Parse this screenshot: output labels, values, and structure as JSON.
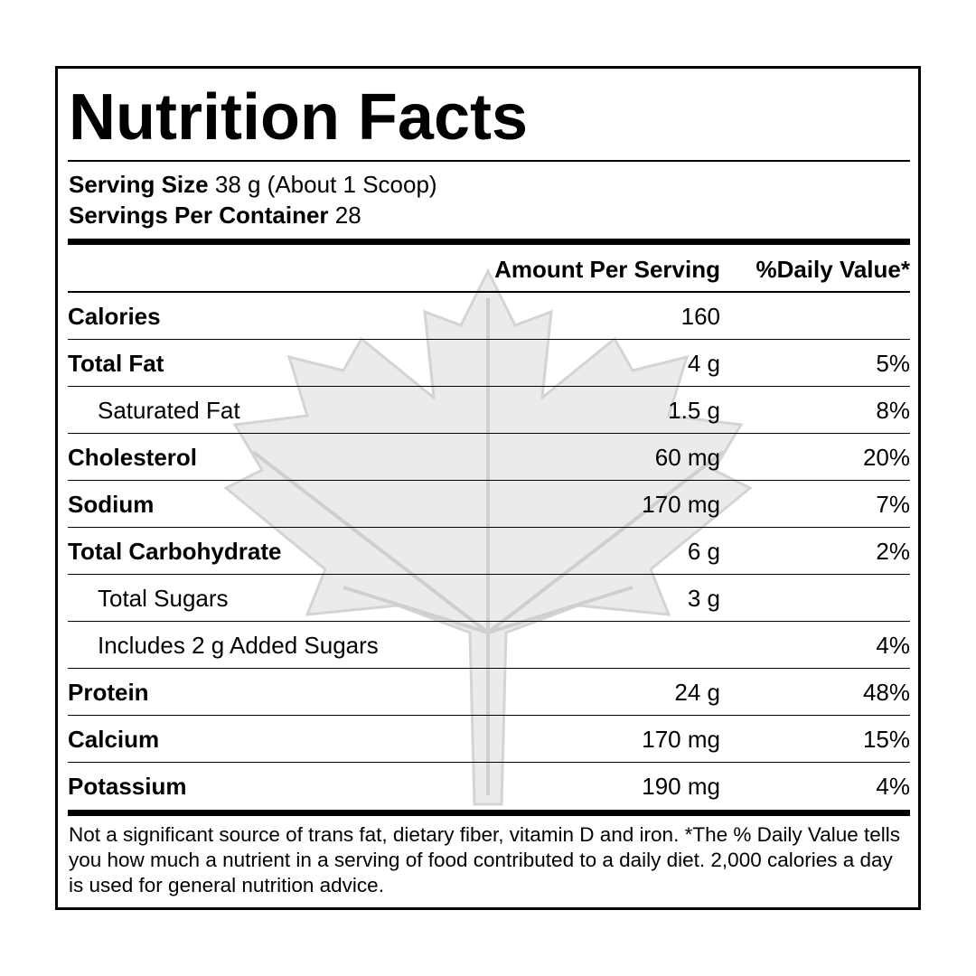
{
  "title": "Nutrition Facts",
  "serving": {
    "size_label": "Serving Size",
    "size": "38 g (About 1 Scoop)",
    "per_container_label": "Servings Per Container",
    "per_container": "28"
  },
  "header": {
    "amount": "Amount Per Serving",
    "daily_value": "%Daily Value*"
  },
  "rows": [
    {
      "name": "Calories",
      "amount": "160",
      "bold": true
    },
    {
      "name": "Total Fat",
      "amount": "4 g",
      "dv": "5%",
      "bold": true
    },
    {
      "name": "Saturated Fat",
      "amount": "1.5 g",
      "dv": "8%",
      "bold": false
    },
    {
      "name": "Cholesterol",
      "amount": "60 mg",
      "dv": "20%",
      "bold": true
    },
    {
      "name": "Sodium",
      "amount": "170 mg",
      "dv": "7%",
      "bold": true
    },
    {
      "name": "Total Carbohydrate",
      "amount": "6 g",
      "dv": "2%",
      "bold": true
    },
    {
      "name": "Total Sugars",
      "amount": "3 g",
      "bold": false
    },
    {
      "name": "Includes 2 g Added Sugars",
      "dv": "4%",
      "bold": false
    },
    {
      "name": "Protein",
      "amount": "24 g",
      "dv": "48%",
      "bold": true
    },
    {
      "name": "Calcium",
      "amount": "170 mg",
      "dv": "15%",
      "bold": true
    },
    {
      "name": "Potassium",
      "amount": "190 mg",
      "dv": "4%",
      "bold": true
    }
  ],
  "footnote": "Not a significant source of trans fat, dietary fiber, vitamin D and iron. *The % Daily Value tells you how much a nutrient in a serving of food contributed to a daily diet. 2,000 calories a day is used for general nutrition advice."
}
